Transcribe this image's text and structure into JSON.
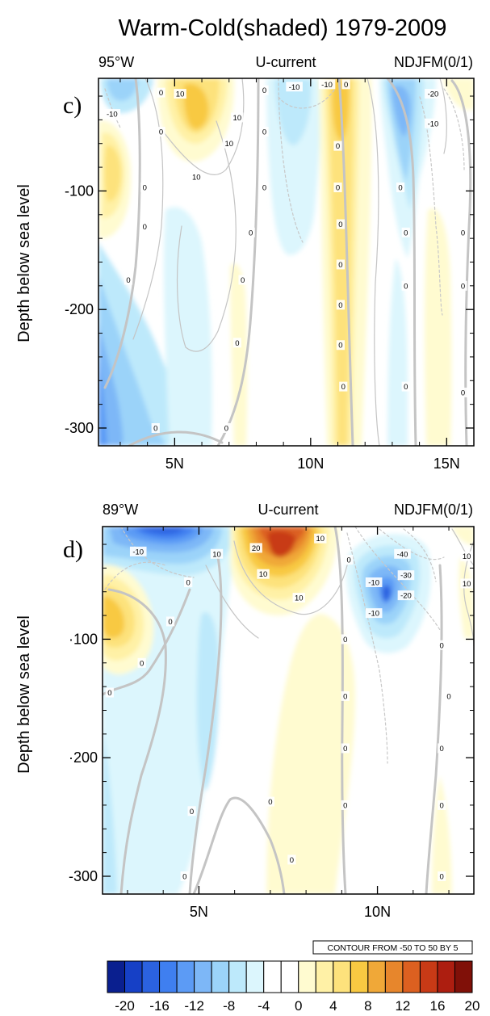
{
  "figure": {
    "title": "Warm-Cold(shaded)  1979-2009",
    "contour_info": "CONTOUR FROM -50 TO 50 BY 5"
  },
  "chart_data": [
    {
      "type": "heatmap",
      "panel_label": "c)",
      "header_left": "95°W",
      "header_center": "U-current",
      "header_right": "NDJFM(0/1)",
      "ylabel": "Depth below sea level",
      "x_ticks": [
        "5N",
        "10N",
        "15N"
      ],
      "x_tick_values": [
        5,
        10,
        15
      ],
      "y_ticks": [
        "-100",
        "-200",
        "-300"
      ],
      "y_tick_values": [
        -100,
        -200,
        -300
      ],
      "xlim": [
        2.2,
        16.0
      ],
      "ylim": [
        -315,
        -5
      ],
      "contour_labels": [
        {
          "text": "0",
          "x": 4.5,
          "y": -17
        },
        {
          "text": "10",
          "x": 5.2,
          "y": -18
        },
        {
          "text": "-10",
          "x": 2.7,
          "y": -35
        },
        {
          "text": "0",
          "x": 4.5,
          "y": -50
        },
        {
          "text": "0",
          "x": 3.9,
          "y": -97
        },
        {
          "text": "0",
          "x": 3.9,
          "y": -130
        },
        {
          "text": "0",
          "x": 3.3,
          "y": -175
        },
        {
          "text": "10",
          "x": 5.8,
          "y": -88
        },
        {
          "text": "10",
          "x": 7.3,
          "y": -38
        },
        {
          "text": "10",
          "x": 7.0,
          "y": -60
        },
        {
          "text": "0",
          "x": 8.3,
          "y": -15
        },
        {
          "text": "0",
          "x": 8.3,
          "y": -50
        },
        {
          "text": "0",
          "x": 8.3,
          "y": -97
        },
        {
          "text": "0",
          "x": 7.8,
          "y": -135
        },
        {
          "text": "0",
          "x": 7.5,
          "y": -175
        },
        {
          "text": "0",
          "x": 7.3,
          "y": -228
        },
        {
          "text": "0",
          "x": 4.3,
          "y": -300
        },
        {
          "text": "0",
          "x": 6.9,
          "y": -300
        },
        {
          "text": "-10",
          "x": 9.4,
          "y": -12
        },
        {
          "text": "-10",
          "x": 10.6,
          "y": -10
        },
        {
          "text": "0",
          "x": 11.3,
          "y": -10
        },
        {
          "text": "0",
          "x": 11.0,
          "y": -62
        },
        {
          "text": "0",
          "x": 11.0,
          "y": -97
        },
        {
          "text": "0",
          "x": 11.1,
          "y": -128
        },
        {
          "text": "0",
          "x": 11.1,
          "y": -162
        },
        {
          "text": "0",
          "x": 11.1,
          "y": -196
        },
        {
          "text": "0",
          "x": 11.1,
          "y": -230
        },
        {
          "text": "0",
          "x": 11.2,
          "y": -265
        },
        {
          "text": "-20",
          "x": 14.5,
          "y": -18
        },
        {
          "text": "-10",
          "x": 14.5,
          "y": -43
        },
        {
          "text": "0",
          "x": 13.3,
          "y": -97
        },
        {
          "text": "0",
          "x": 13.5,
          "y": -135
        },
        {
          "text": "0",
          "x": 13.5,
          "y": -180
        },
        {
          "text": "0",
          "x": 13.5,
          "y": -265
        },
        {
          "text": "0",
          "x": 15.6,
          "y": -135
        },
        {
          "text": "0",
          "x": 15.6,
          "y": -180
        },
        {
          "text": "0",
          "x": 15.6,
          "y": -270
        }
      ]
    },
    {
      "type": "heatmap",
      "panel_label": "d)",
      "header_left": "89°W",
      "header_center": "U-current",
      "header_right": "NDJFM(0/1)",
      "ylabel": "Depth below sea level",
      "x_ticks": [
        "5N",
        "10N"
      ],
      "x_tick_values": [
        5,
        10
      ],
      "y_ticks": [
        "·100",
        "·200",
        "-300"
      ],
      "y_tick_values": [
        -100,
        -200,
        -300
      ],
      "xlim": [
        2.3,
        12.7
      ],
      "ylim": [
        -315,
        -5
      ],
      "contour_labels": [
        {
          "text": "-10",
          "x": 3.3,
          "y": -26
        },
        {
          "text": "10",
          "x": 5.5,
          "y": -28
        },
        {
          "text": "0",
          "x": 4.7,
          "y": -52
        },
        {
          "text": "0",
          "x": 4.2,
          "y": -85
        },
        {
          "text": "0",
          "x": 3.4,
          "y": -120
        },
        {
          "text": "0",
          "x": 2.5,
          "y": -145
        },
        {
          "text": "20",
          "x": 6.6,
          "y": -23
        },
        {
          "text": "10",
          "x": 8.4,
          "y": -15
        },
        {
          "text": "10",
          "x": 6.8,
          "y": -45
        },
        {
          "text": "10",
          "x": 7.8,
          "y": -65
        },
        {
          "text": "0",
          "x": 9.2,
          "y": -33
        },
        {
          "text": "0",
          "x": 9.1,
          "y": -100
        },
        {
          "text": "0",
          "x": 9.1,
          "y": -148
        },
        {
          "text": "0",
          "x": 9.1,
          "y": -192
        },
        {
          "text": "0",
          "x": 9.1,
          "y": -240
        },
        {
          "text": "0",
          "x": 7.6,
          "y": -286
        },
        {
          "text": "0",
          "x": 4.8,
          "y": -245
        },
        {
          "text": "0",
          "x": 4.6,
          "y": -300
        },
        {
          "text": "0",
          "x": 7.0,
          "y": -237
        },
        {
          "text": "-40",
          "x": 10.7,
          "y": -28
        },
        {
          "text": "-30",
          "x": 10.8,
          "y": -46
        },
        {
          "text": "-10",
          "x": 9.9,
          "y": -52
        },
        {
          "text": "-20",
          "x": 10.8,
          "y": -63
        },
        {
          "text": "-10",
          "x": 9.9,
          "y": -78
        },
        {
          "text": "10",
          "x": 12.5,
          "y": -30
        },
        {
          "text": "10",
          "x": 12.5,
          "y": -53
        },
        {
          "text": "0",
          "x": 11.8,
          "y": -105
        },
        {
          "text": "0",
          "x": 12.0,
          "y": -148
        },
        {
          "text": "0",
          "x": 11.8,
          "y": -192
        },
        {
          "text": "0",
          "x": 11.8,
          "y": -240
        },
        {
          "text": "0",
          "x": 11.8,
          "y": -300
        }
      ]
    }
  ],
  "colorbar": {
    "tick_labels": [
      "-20",
      "-16",
      "-12",
      "-8",
      "-4",
      "0",
      "4",
      "8",
      "12",
      "16",
      "20"
    ],
    "colors": [
      "#0a1f8f",
      "#1640c6",
      "#2b62e0",
      "#3f7ff0",
      "#5c9bf5",
      "#7db7f7",
      "#9bd3f9",
      "#bde9fb",
      "#dcf6fd",
      "#ffffff",
      "#ffffff",
      "#fffbd0",
      "#fff1a6",
      "#fde27c",
      "#f8c942",
      "#f0a838",
      "#e7862c",
      "#dc6020",
      "#c83a16",
      "#ad1e10",
      "#801008"
    ]
  }
}
